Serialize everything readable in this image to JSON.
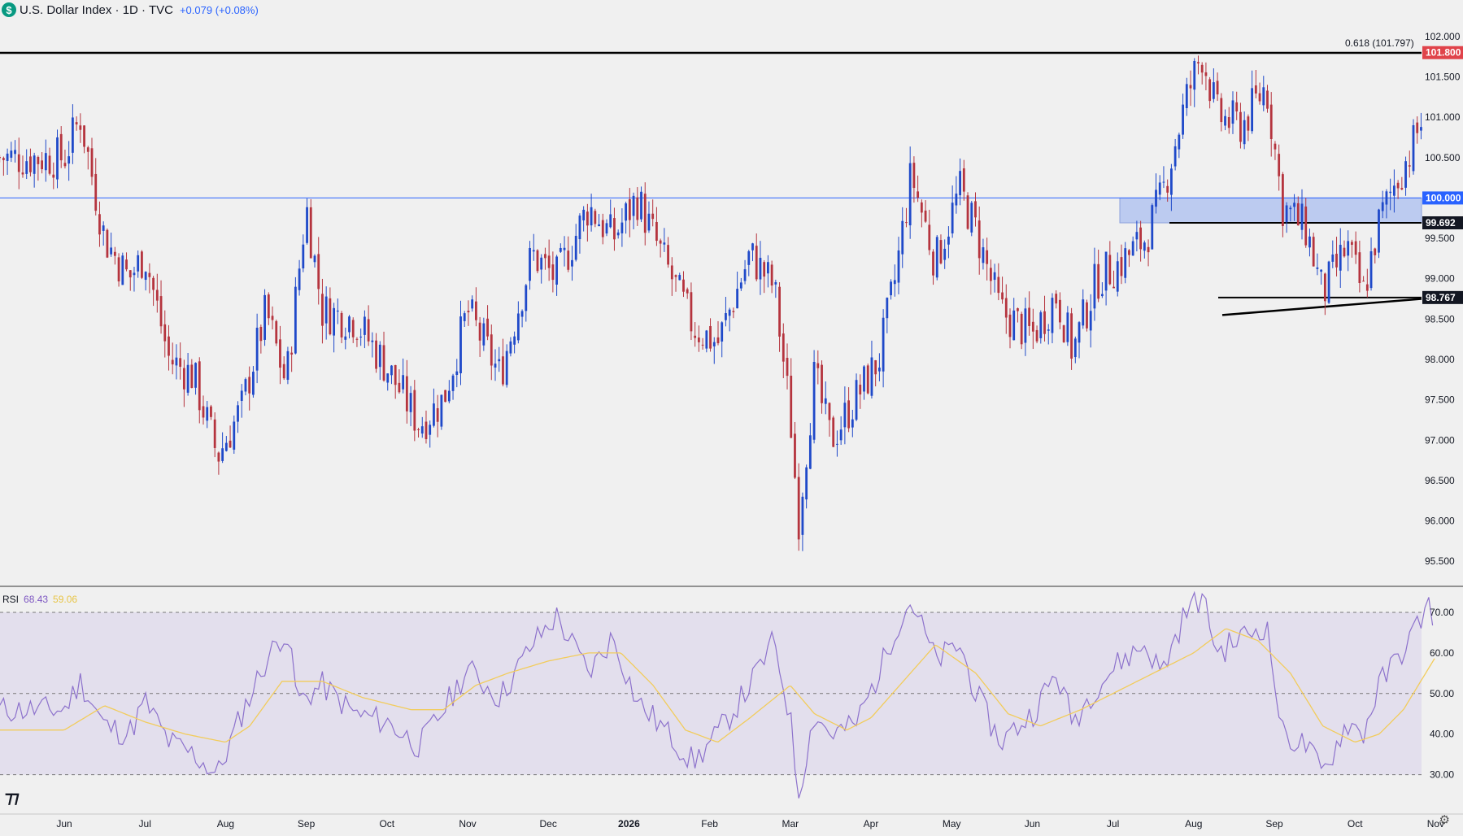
{
  "header": {
    "logo_letter": "$",
    "title": "U.S. Dollar Index · 1D · TVC",
    "change": "+0.079 (+0.08%)"
  },
  "colors": {
    "up": "#1f49c9",
    "down": "#b5343e",
    "rsi": "#8d72cc",
    "rsi_ma": "#f2cc5b",
    "zone": "#b3c5f0",
    "red_badge": "#e0434a",
    "blue_badge": "#2962ff",
    "black_badge": "#131722"
  },
  "rsi_legend": {
    "label": "RSI",
    "value": "68.43",
    "ma_value": "59.06"
  },
  "chart_data": [
    {
      "type": "candlestick",
      "title": "U.S. Dollar Index · 1D · TVC",
      "x_categories": [
        "Jun",
        "Jul",
        "Aug",
        "Sep",
        "Oct",
        "Nov",
        "Dec",
        "2026",
        "Feb",
        "Mar",
        "Apr",
        "May",
        "Jun",
        "Jul",
        "Aug",
        "Sep",
        "Oct",
        "Nov"
      ],
      "y_ticks": [
        "102.000",
        "101.500",
        "101.000",
        "100.500",
        "100.000",
        "99.500",
        "99.000",
        "98.500",
        "98.000",
        "97.500",
        "97.000",
        "96.500",
        "96.000",
        "95.500"
      ],
      "ylim": [
        95.2,
        102.2
      ],
      "price_badges": [
        {
          "label": "101.800",
          "value": 101.8,
          "style": "red"
        },
        {
          "label": "100.000",
          "value": 100.0,
          "style": "blue"
        },
        {
          "label": "99.692",
          "value": 99.692,
          "style": "black"
        },
        {
          "label": "98.767",
          "value": 98.767,
          "style": "black"
        }
      ],
      "annotations": [
        {
          "text": "0.618 (101.797)",
          "value": 101.797
        }
      ],
      "close_path": [
        {
          "month": 0.0,
          "value": 100.5
        },
        {
          "month": 0.2,
          "value": 101.0
        },
        {
          "month": 0.5,
          "value": 99.5
        },
        {
          "month": 0.8,
          "value": 99.0
        },
        {
          "month": 1.0,
          "value": 99.3
        },
        {
          "month": 1.3,
          "value": 98.0
        },
        {
          "month": 1.6,
          "value": 97.8
        },
        {
          "month": 1.9,
          "value": 96.8
        },
        {
          "month": 2.2,
          "value": 97.4
        },
        {
          "month": 2.5,
          "value": 98.6
        },
        {
          "month": 2.75,
          "value": 97.7
        },
        {
          "month": 3.0,
          "value": 99.9
        },
        {
          "month": 3.2,
          "value": 98.6
        },
        {
          "month": 3.6,
          "value": 98.5
        },
        {
          "month": 4.0,
          "value": 97.9
        },
        {
          "month": 4.4,
          "value": 97.2
        },
        {
          "month": 4.7,
          "value": 97.5
        },
        {
          "month": 5.0,
          "value": 98.6
        },
        {
          "month": 5.4,
          "value": 97.8
        },
        {
          "month": 5.8,
          "value": 99.3
        },
        {
          "month": 6.1,
          "value": 99.0
        },
        {
          "month": 6.5,
          "value": 99.9
        },
        {
          "month": 6.8,
          "value": 99.5
        },
        {
          "month": 7.1,
          "value": 100.0
        },
        {
          "month": 7.4,
          "value": 99.3
        },
        {
          "month": 7.8,
          "value": 98.4
        },
        {
          "month": 8.1,
          "value": 98.2
        },
        {
          "month": 8.5,
          "value": 99.3
        },
        {
          "month": 8.8,
          "value": 98.9
        },
        {
          "month": 9.0,
          "value": 97.3
        },
        {
          "month": 9.1,
          "value": 96.0
        },
        {
          "month": 9.3,
          "value": 97.8
        },
        {
          "month": 9.5,
          "value": 97.0
        },
        {
          "month": 9.8,
          "value": 97.5
        },
        {
          "month": 10.1,
          "value": 98.0
        },
        {
          "month": 10.3,
          "value": 99.0
        },
        {
          "month": 10.5,
          "value": 100.3
        },
        {
          "month": 10.8,
          "value": 99.2
        },
        {
          "month": 11.1,
          "value": 100.1
        },
        {
          "month": 11.3,
          "value": 99.6
        },
        {
          "month": 11.6,
          "value": 98.6
        },
        {
          "month": 12.0,
          "value": 98.3
        },
        {
          "month": 12.3,
          "value": 98.8
        },
        {
          "month": 12.5,
          "value": 98.1
        },
        {
          "month": 12.8,
          "value": 99.0
        },
        {
          "month": 13.1,
          "value": 99.2
        },
        {
          "month": 13.4,
          "value": 99.5
        },
        {
          "month": 13.6,
          "value": 100.0
        },
        {
          "month": 13.9,
          "value": 101.2
        },
        {
          "month": 14.1,
          "value": 101.8
        },
        {
          "month": 14.3,
          "value": 101.0
        },
        {
          "month": 14.6,
          "value": 100.9
        },
        {
          "month": 14.9,
          "value": 101.4
        },
        {
          "month": 15.1,
          "value": 99.9
        },
        {
          "month": 15.4,
          "value": 99.6
        },
        {
          "month": 15.6,
          "value": 98.8
        },
        {
          "month": 15.9,
          "value": 99.4
        },
        {
          "month": 16.1,
          "value": 98.8
        },
        {
          "month": 16.3,
          "value": 99.7
        },
        {
          "month": 16.5,
          "value": 100.2
        },
        {
          "month": 16.7,
          "value": 100.6
        },
        {
          "month": 16.9,
          "value": 101.2
        },
        {
          "month": 17.0,
          "value": 101.1
        }
      ]
    },
    {
      "type": "line",
      "title": "RSI",
      "series": [
        {
          "name": "RSI",
          "last_value": 68.43
        },
        {
          "name": "RSI MA",
          "last_value": 59.06
        }
      ],
      "y_ticks": [
        "70.00",
        "60.00",
        "50.00",
        "40.00",
        "30.00"
      ],
      "ylim": [
        20.5,
        76
      ],
      "bands": [
        30,
        50,
        70
      ],
      "rsi_path": [
        {
          "month": 0.0,
          "value": 46
        },
        {
          "month": 0.2,
          "value": 53
        },
        {
          "month": 0.5,
          "value": 42
        },
        {
          "month": 0.8,
          "value": 40
        },
        {
          "month": 1.0,
          "value": 48
        },
        {
          "month": 1.3,
          "value": 38
        },
        {
          "month": 1.6,
          "value": 35
        },
        {
          "month": 1.9,
          "value": 30
        },
        {
          "month": 2.2,
          "value": 45
        },
        {
          "month": 2.5,
          "value": 58
        },
        {
          "month": 2.75,
          "value": 66
        },
        {
          "month": 2.9,
          "value": 48
        },
        {
          "month": 3.2,
          "value": 52
        },
        {
          "month": 3.6,
          "value": 45
        },
        {
          "month": 4.0,
          "value": 43
        },
        {
          "month": 4.4,
          "value": 37
        },
        {
          "month": 4.7,
          "value": 46
        },
        {
          "month": 5.0,
          "value": 56
        },
        {
          "month": 5.4,
          "value": 49
        },
        {
          "month": 5.8,
          "value": 62
        },
        {
          "month": 6.1,
          "value": 69
        },
        {
          "month": 6.5,
          "value": 55
        },
        {
          "month": 6.8,
          "value": 64
        },
        {
          "month": 7.1,
          "value": 48
        },
        {
          "month": 7.4,
          "value": 42
        },
        {
          "month": 7.8,
          "value": 33
        },
        {
          "month": 8.1,
          "value": 40
        },
        {
          "month": 8.5,
          "value": 52
        },
        {
          "month": 8.8,
          "value": 63
        },
        {
          "month": 9.0,
          "value": 44
        },
        {
          "month": 9.1,
          "value": 25
        },
        {
          "month": 9.3,
          "value": 45
        },
        {
          "month": 9.5,
          "value": 40
        },
        {
          "month": 9.8,
          "value": 42
        },
        {
          "month": 10.1,
          "value": 55
        },
        {
          "month": 10.3,
          "value": 66
        },
        {
          "month": 10.5,
          "value": 73
        },
        {
          "month": 10.8,
          "value": 58
        },
        {
          "month": 11.1,
          "value": 62
        },
        {
          "month": 11.3,
          "value": 50
        },
        {
          "month": 11.6,
          "value": 38
        },
        {
          "month": 12.0,
          "value": 45
        },
        {
          "month": 12.3,
          "value": 55
        },
        {
          "month": 12.5,
          "value": 43
        },
        {
          "month": 12.8,
          "value": 52
        },
        {
          "month": 13.1,
          "value": 58
        },
        {
          "month": 13.4,
          "value": 62
        },
        {
          "month": 13.6,
          "value": 55
        },
        {
          "month": 13.9,
          "value": 70
        },
        {
          "month": 14.1,
          "value": 74
        },
        {
          "month": 14.3,
          "value": 60
        },
        {
          "month": 14.6,
          "value": 64
        },
        {
          "month": 14.9,
          "value": 67
        },
        {
          "month": 15.1,
          "value": 40
        },
        {
          "month": 15.4,
          "value": 37
        },
        {
          "month": 15.6,
          "value": 30
        },
        {
          "month": 15.9,
          "value": 43
        },
        {
          "month": 16.1,
          "value": 40
        },
        {
          "month": 16.3,
          "value": 52
        },
        {
          "month": 16.5,
          "value": 58
        },
        {
          "month": 16.7,
          "value": 64
        },
        {
          "month": 16.9,
          "value": 72
        },
        {
          "month": 17.0,
          "value": 68.43
        }
      ],
      "ma_path": [
        {
          "month": 0.0,
          "value": 41
        },
        {
          "month": 0.5,
          "value": 47
        },
        {
          "month": 1.0,
          "value": 43
        },
        {
          "month": 1.5,
          "value": 40
        },
        {
          "month": 2.0,
          "value": 38
        },
        {
          "month": 2.3,
          "value": 42
        },
        {
          "month": 2.7,
          "value": 53
        },
        {
          "month": 3.2,
          "value": 53
        },
        {
          "month": 3.7,
          "value": 49
        },
        {
          "month": 4.3,
          "value": 46
        },
        {
          "month": 4.7,
          "value": 46
        },
        {
          "month": 5.1,
          "value": 52
        },
        {
          "month": 5.5,
          "value": 55
        },
        {
          "month": 6.0,
          "value": 58
        },
        {
          "month": 6.5,
          "value": 60
        },
        {
          "month": 6.9,
          "value": 60
        },
        {
          "month": 7.3,
          "value": 52
        },
        {
          "month": 7.7,
          "value": 41
        },
        {
          "month": 8.1,
          "value": 38
        },
        {
          "month": 8.5,
          "value": 44
        },
        {
          "month": 9.0,
          "value": 52
        },
        {
          "month": 9.3,
          "value": 45
        },
        {
          "month": 9.7,
          "value": 41
        },
        {
          "month": 10.0,
          "value": 44
        },
        {
          "month": 10.4,
          "value": 53
        },
        {
          "month": 10.8,
          "value": 62
        },
        {
          "month": 11.3,
          "value": 55
        },
        {
          "month": 11.7,
          "value": 45
        },
        {
          "month": 12.1,
          "value": 42
        },
        {
          "month": 12.6,
          "value": 46
        },
        {
          "month": 13.0,
          "value": 50
        },
        {
          "month": 13.5,
          "value": 55
        },
        {
          "month": 14.0,
          "value": 60
        },
        {
          "month": 14.4,
          "value": 66
        },
        {
          "month": 14.8,
          "value": 63
        },
        {
          "month": 15.2,
          "value": 55
        },
        {
          "month": 15.6,
          "value": 42
        },
        {
          "month": 16.0,
          "value": 38
        },
        {
          "month": 16.3,
          "value": 40
        },
        {
          "month": 16.6,
          "value": 46
        },
        {
          "month": 17.0,
          "value": 59.06
        }
      ]
    }
  ]
}
